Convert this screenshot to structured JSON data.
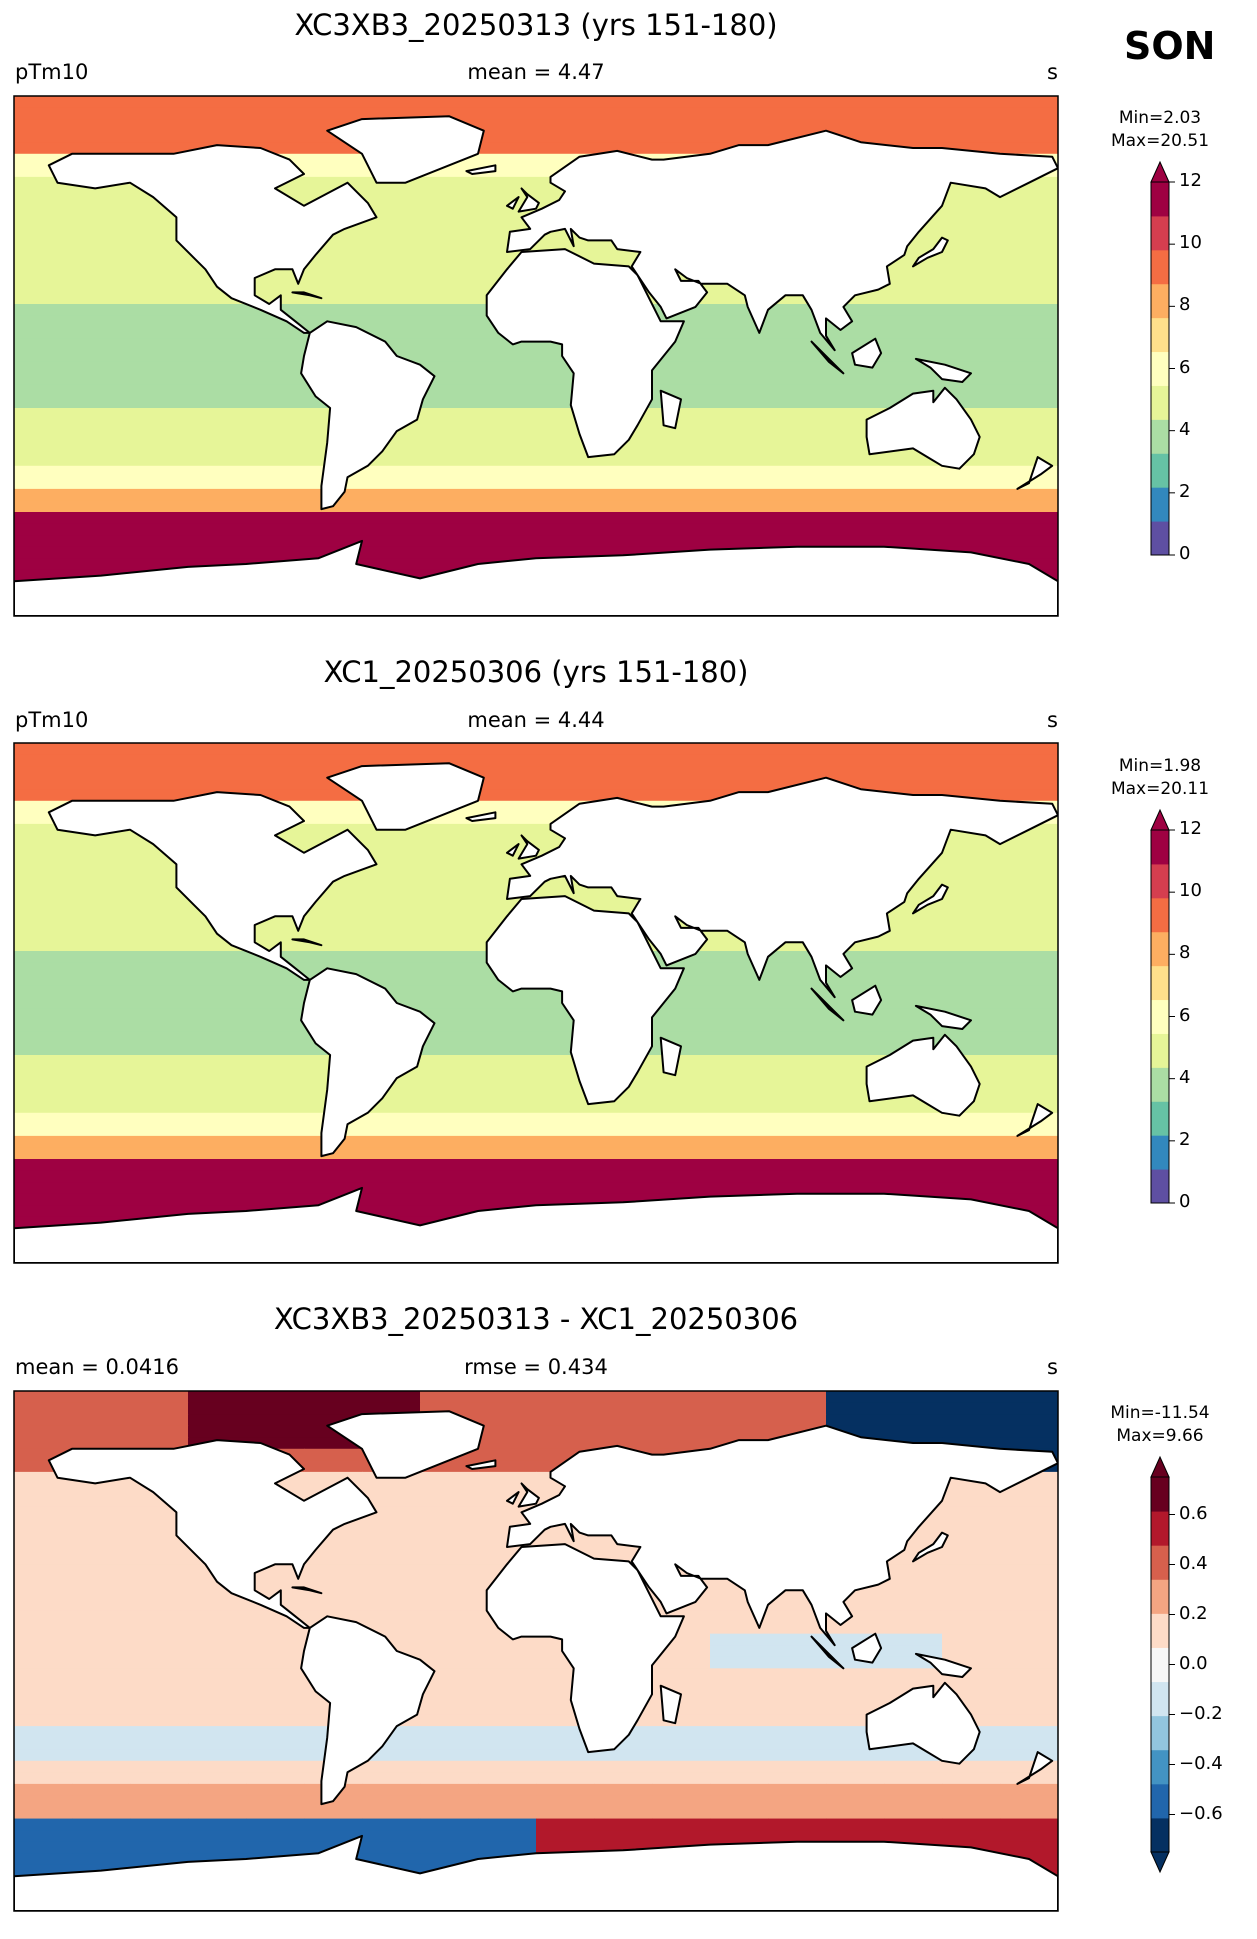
{
  "season": "SON",
  "palettes": {
    "field": [
      "#5e4fa2",
      "#3288bd",
      "#66c2a5",
      "#abdda4",
      "#e6f598",
      "#ffffbf",
      "#fee08b",
      "#fdae61",
      "#f46d43",
      "#d53e4f",
      "#9e0142"
    ],
    "diff": [
      "#053061",
      "#2166ac",
      "#4393c3",
      "#92c5de",
      "#d1e5f0",
      "#f7f7f7",
      "#fddbc7",
      "#f4a582",
      "#d6604d",
      "#b2182b",
      "#67001f"
    ]
  },
  "panels": [
    {
      "title": "XC3XB3_20250313 (yrs 151-180)",
      "left_label": "pTm10",
      "center_label": "mean = 4.47",
      "right_label": "s",
      "min_text": "Min=2.03",
      "max_text": "Max=20.51",
      "colorbar": {
        "ticks": [
          "0",
          "2",
          "4",
          "6",
          "8",
          "10",
          "12"
        ]
      }
    },
    {
      "title": "XC1_20250306 (yrs 151-180)",
      "left_label": "pTm10",
      "center_label": "mean = 4.44",
      "right_label": "s",
      "min_text": "Min=1.98",
      "max_text": "Max=20.11",
      "colorbar": {
        "ticks": [
          "0",
          "2",
          "4",
          "6",
          "8",
          "10",
          "12"
        ]
      }
    },
    {
      "title": "XC3XB3_20250313 - XC1_20250306",
      "left_label": "mean = 0.0416",
      "center_label": "rmse = 0.434",
      "right_label": "s",
      "min_text": "Min=-11.54",
      "max_text": "Max=9.66",
      "colorbar": {
        "ticks": [
          "0.6",
          "0.4",
          "0.2",
          "0.0",
          "−0.2",
          "−0.4",
          "−0.6"
        ]
      }
    }
  ]
}
